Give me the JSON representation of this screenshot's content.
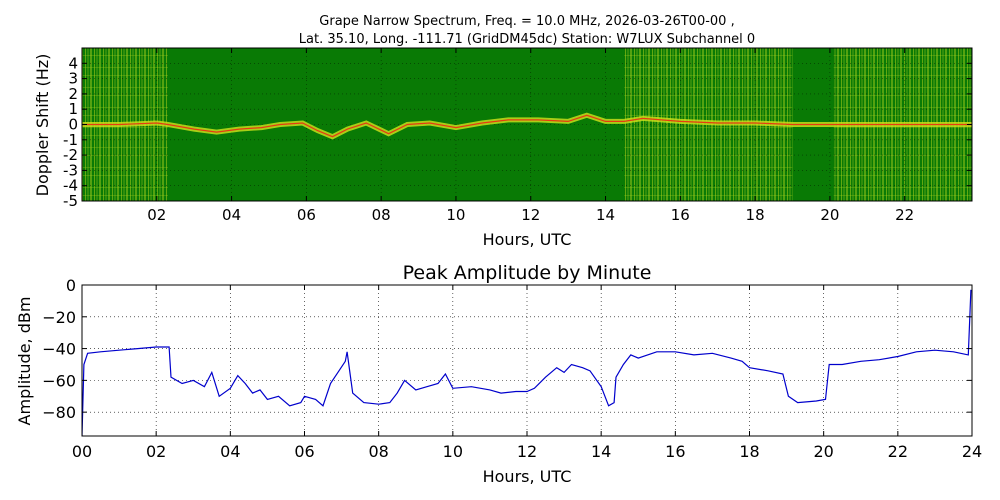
{
  "title_line1": "Grape Narrow Spectrum, Freq. = 10.0 MHz, 2026-03-26T00-00 ,",
  "title_line2": "Lat.  35.10, Long. -111.71 (GridDM45dc) Station: W7LUX Subchannel 0",
  "chart_data": [
    {
      "type": "heatmap",
      "title": "",
      "xlabel": "Hours, UTC",
      "ylabel": "Doppler Shift (Hz)",
      "xlim": [
        0,
        23.8
      ],
      "ylim": [
        -5,
        5
      ],
      "xticks": [
        "02",
        "04",
        "06",
        "08",
        "10",
        "12",
        "14",
        "16",
        "18",
        "20",
        "22"
      ],
      "xtick_values": [
        2,
        4,
        6,
        8,
        10,
        12,
        14,
        16,
        18,
        20,
        22
      ],
      "yticks": [
        "4",
        "3",
        "2",
        "1",
        "0",
        "-1",
        "-2",
        "-3",
        "-4",
        "-5"
      ],
      "ytick_values": [
        4,
        3,
        2,
        1,
        0,
        -1,
        -2,
        -3,
        -4,
        -5
      ],
      "grid": true,
      "colors": {
        "background": "#0a7a05",
        "noise": "#8fc21a",
        "mid": "#d2e41c",
        "peak": "#e63a12"
      },
      "dark_segments": [
        [
          2.3,
          14.5
        ],
        [
          19.0,
          20.1
        ]
      ],
      "peak_trace": [
        [
          0.0,
          0.0
        ],
        [
          1.0,
          0.0
        ],
        [
          2.0,
          0.1
        ],
        [
          2.3,
          0.0
        ],
        [
          3.0,
          -0.3
        ],
        [
          3.6,
          -0.5
        ],
        [
          4.2,
          -0.3
        ],
        [
          4.8,
          -0.2
        ],
        [
          5.3,
          0.0
        ],
        [
          5.9,
          0.1
        ],
        [
          6.3,
          -0.4
        ],
        [
          6.7,
          -0.8
        ],
        [
          7.1,
          -0.3
        ],
        [
          7.6,
          0.1
        ],
        [
          8.2,
          -0.6
        ],
        [
          8.7,
          0.0
        ],
        [
          9.3,
          0.1
        ],
        [
          10.0,
          -0.2
        ],
        [
          10.7,
          0.1
        ],
        [
          11.4,
          0.3
        ],
        [
          12.2,
          0.3
        ],
        [
          13.0,
          0.2
        ],
        [
          13.5,
          0.6
        ],
        [
          14.0,
          0.2
        ],
        [
          14.5,
          0.2
        ],
        [
          15.0,
          0.4
        ],
        [
          16.0,
          0.2
        ],
        [
          17.0,
          0.1
        ],
        [
          18.0,
          0.1
        ],
        [
          19.0,
          0.0
        ],
        [
          20.1,
          0.0
        ],
        [
          21.0,
          0.0
        ],
        [
          22.0,
          0.0
        ],
        [
          23.8,
          0.0
        ]
      ]
    },
    {
      "type": "line",
      "title": "Peak Amplitude by Minute",
      "xlabel": "Hours, UTC",
      "ylabel": "Amplitude, dBm",
      "xlim": [
        0,
        24
      ],
      "ylim": [
        -95,
        0
      ],
      "xticks": [
        "00",
        "02",
        "04",
        "06",
        "08",
        "10",
        "12",
        "14",
        "16",
        "18",
        "20",
        "22",
        "24"
      ],
      "xtick_values": [
        0,
        2,
        4,
        6,
        8,
        10,
        12,
        14,
        16,
        18,
        20,
        22,
        24
      ],
      "yticks": [
        "0",
        "−20",
        "−40",
        "−60",
        "−80"
      ],
      "ytick_values": [
        0,
        -20,
        -40,
        -60,
        -80
      ],
      "grid": true,
      "series": [
        {
          "color": "#0000cc",
          "points": [
            [
              0.0,
              -95
            ],
            [
              0.05,
              -50
            ],
            [
              0.15,
              -43
            ],
            [
              0.5,
              -42
            ],
            [
              1.0,
              -41
            ],
            [
              1.5,
              -40
            ],
            [
              2.0,
              -39
            ],
            [
              2.35,
              -39
            ],
            [
              2.4,
              -58
            ],
            [
              2.7,
              -62
            ],
            [
              3.0,
              -60
            ],
            [
              3.3,
              -64
            ],
            [
              3.5,
              -55
            ],
            [
              3.7,
              -70
            ],
            [
              4.0,
              -65
            ],
            [
              4.2,
              -57
            ],
            [
              4.4,
              -62
            ],
            [
              4.6,
              -68
            ],
            [
              4.8,
              -66
            ],
            [
              5.0,
              -72
            ],
            [
              5.3,
              -70
            ],
            [
              5.6,
              -76
            ],
            [
              5.9,
              -74
            ],
            [
              6.0,
              -70
            ],
            [
              6.3,
              -72
            ],
            [
              6.5,
              -76
            ],
            [
              6.7,
              -62
            ],
            [
              6.9,
              -55
            ],
            [
              7.1,
              -48
            ],
            [
              7.15,
              -42
            ],
            [
              7.3,
              -68
            ],
            [
              7.6,
              -74
            ],
            [
              8.0,
              -75
            ],
            [
              8.3,
              -74
            ],
            [
              8.5,
              -68
            ],
            [
              8.7,
              -60
            ],
            [
              9.0,
              -66
            ],
            [
              9.3,
              -64
            ],
            [
              9.6,
              -62
            ],
            [
              9.8,
              -56
            ],
            [
              10.0,
              -65
            ],
            [
              10.5,
              -64
            ],
            [
              11.0,
              -66
            ],
            [
              11.3,
              -68
            ],
            [
              11.7,
              -67
            ],
            [
              12.0,
              -67
            ],
            [
              12.2,
              -65
            ],
            [
              12.5,
              -58
            ],
            [
              12.8,
              -52
            ],
            [
              13.0,
              -55
            ],
            [
              13.2,
              -50
            ],
            [
              13.5,
              -52
            ],
            [
              13.7,
              -54
            ],
            [
              14.0,
              -64
            ],
            [
              14.2,
              -76
            ],
            [
              14.35,
              -74
            ],
            [
              14.4,
              -58
            ],
            [
              14.6,
              -50
            ],
            [
              14.8,
              -44
            ],
            [
              15.0,
              -46
            ],
            [
              15.5,
              -42
            ],
            [
              16.0,
              -42
            ],
            [
              16.5,
              -44
            ],
            [
              17.0,
              -43
            ],
            [
              17.5,
              -46
            ],
            [
              17.8,
              -48
            ],
            [
              18.0,
              -52
            ],
            [
              18.5,
              -54
            ],
            [
              18.9,
              -56
            ],
            [
              19.05,
              -70
            ],
            [
              19.3,
              -74
            ],
            [
              19.8,
              -73
            ],
            [
              20.05,
              -72
            ],
            [
              20.15,
              -50
            ],
            [
              20.5,
              -50
            ],
            [
              21.0,
              -48
            ],
            [
              21.5,
              -47
            ],
            [
              22.0,
              -45
            ],
            [
              22.5,
              -42
            ],
            [
              23.0,
              -41
            ],
            [
              23.5,
              -42
            ],
            [
              23.9,
              -44
            ],
            [
              23.97,
              -3
            ]
          ]
        }
      ]
    }
  ]
}
